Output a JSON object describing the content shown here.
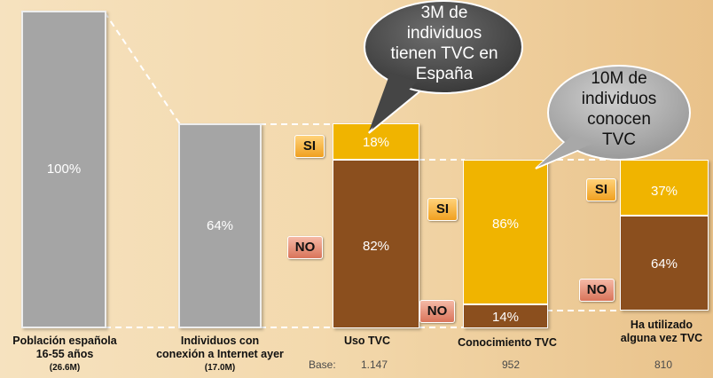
{
  "chart_data": {
    "type": "bar",
    "categories": [
      {
        "line1": "Población española",
        "line2": "16-55 años",
        "sub": "(26.6M)",
        "value_label": "100%"
      },
      {
        "line1": "Individuos con",
        "line2": "conexión a Internet ayer",
        "sub": "(17.0M)",
        "value_label": "64%"
      },
      {
        "line1": "Uso TVC",
        "line2": "",
        "sub": ""
      },
      {
        "line1": "Conocimiento TVC",
        "line2": "",
        "sub": ""
      },
      {
        "line1": "Ha utilizado",
        "line2": "alguna vez TVC",
        "sub": ""
      }
    ],
    "totals_percent": [
      100,
      64
    ],
    "stacked": [
      {
        "category": "Uso TVC",
        "si": 18,
        "no": 82,
        "si_label": "18%",
        "no_label": "82%",
        "base": "1.147"
      },
      {
        "category": "Conocimiento TVC",
        "si": 86,
        "no": 14,
        "si_label": "86%",
        "no_label": "14%",
        "base": "952"
      },
      {
        "category": "Ha utilizado alguna vez TVC",
        "si": 37,
        "no": 64,
        "si_label": "37%",
        "no_label": "64%",
        "base": "810"
      }
    ],
    "badges": {
      "si": "SI",
      "no": "NO"
    },
    "base_label": "Base:",
    "callouts": [
      {
        "lines": [
          "3M de",
          "individuos",
          "tienen TVC en",
          "España"
        ],
        "style": "dark"
      },
      {
        "lines": [
          "10M de",
          "individuos",
          "conocen",
          "TVC"
        ],
        "style": "light"
      }
    ],
    "colors": {
      "gray": "#a5a5a5",
      "si": "#f0b400",
      "no": "#8b4f1e"
    }
  }
}
